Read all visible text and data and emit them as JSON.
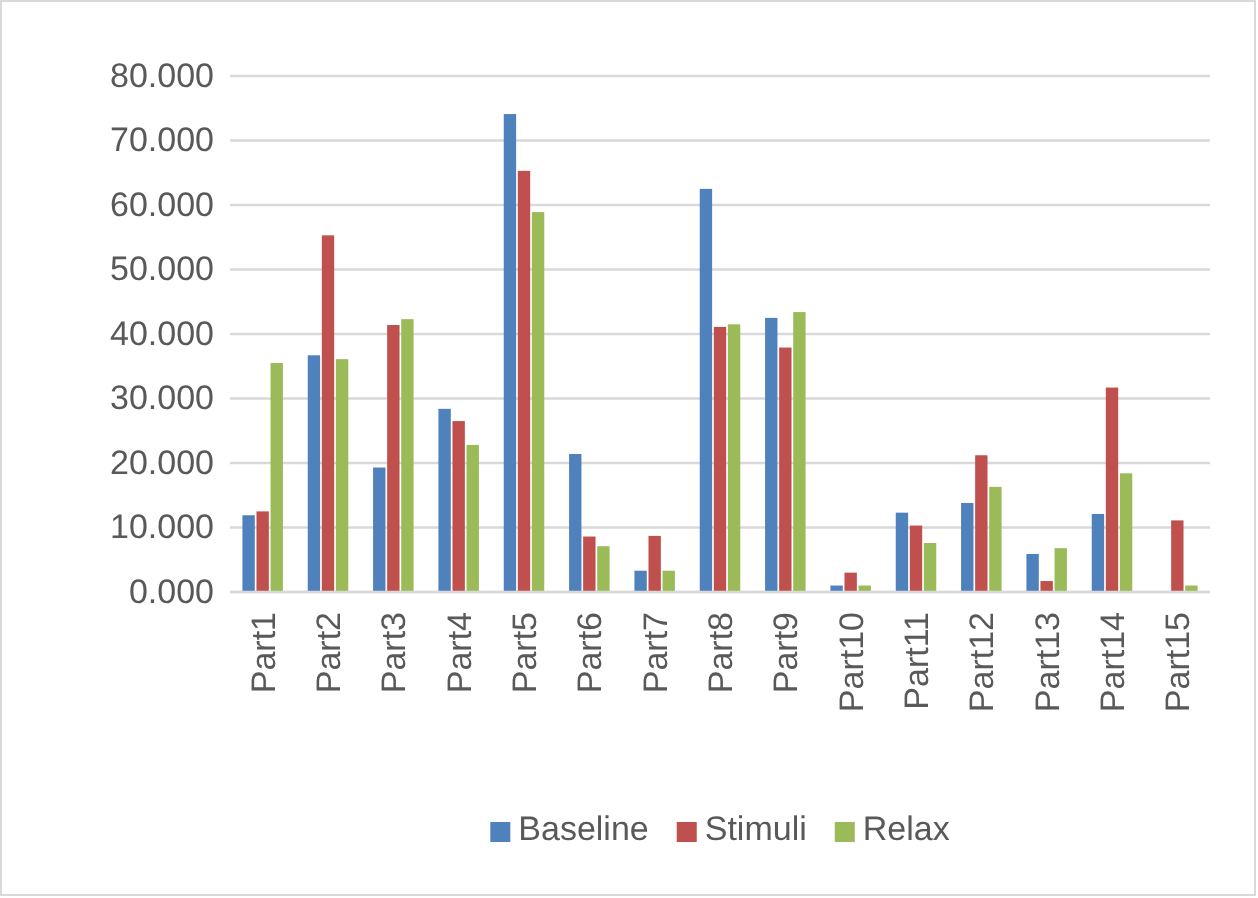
{
  "chart_data": {
    "type": "bar",
    "categories": [
      "Part1",
      "Part2",
      "Part3",
      "Part4",
      "Part5",
      "Part6",
      "Part7",
      "Part8",
      "Part9",
      "Part10",
      "Part11",
      "Part12",
      "Part13",
      "Part14",
      "Part15"
    ],
    "series": [
      {
        "name": "Baseline",
        "color": "#4f81bd",
        "values": [
          11.9,
          36.7,
          19.3,
          28.4,
          74.1,
          21.4,
          3.3,
          62.5,
          42.5,
          1.0,
          12.3,
          13.8,
          5.9,
          12.1,
          0
        ]
      },
      {
        "name": "Stimuli",
        "color": "#c0504d",
        "values": [
          12.5,
          55.3,
          41.4,
          26.5,
          65.3,
          8.6,
          8.7,
          41.1,
          37.9,
          3.0,
          10.3,
          21.2,
          1.7,
          31.7,
          11.1
        ]
      },
      {
        "name": "Relax",
        "color": "#9bbb59",
        "values": [
          35.5,
          36.1,
          42.3,
          22.8,
          58.9,
          7.1,
          3.3,
          41.5,
          43.4,
          1.0,
          7.6,
          16.3,
          6.8,
          18.4,
          1.0
        ]
      }
    ],
    "ylim": [
      0,
      80
    ],
    "yticks": [
      {
        "value": 0,
        "label": "0.000"
      },
      {
        "value": 10,
        "label": "10.000"
      },
      {
        "value": 20,
        "label": "20.000"
      },
      {
        "value": 30,
        "label": "30.000"
      },
      {
        "value": 40,
        "label": "40.000"
      },
      {
        "value": 50,
        "label": "50.000"
      },
      {
        "value": 60,
        "label": "60.000"
      },
      {
        "value": 70,
        "label": "70.000"
      },
      {
        "value": 80,
        "label": "80.000"
      }
    ],
    "grid": "y",
    "legend": "bottom"
  }
}
